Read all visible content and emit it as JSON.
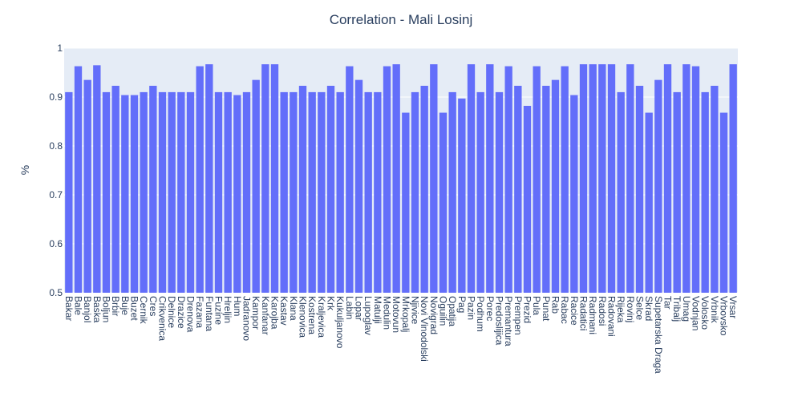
{
  "chart_data": {
    "type": "bar",
    "title": "Correlation - Mali Losinj",
    "xlabel": "",
    "ylabel": "%",
    "ylim": [
      0.5,
      1.0
    ],
    "yticks": [
      "0.5",
      "0.6",
      "0.7",
      "0.8",
      "0.9",
      "1"
    ],
    "grid": true,
    "bar_color": "#636efa",
    "plot_bg": "#e5ecf6",
    "text_color": "#2a3f5f",
    "categories": [
      "Bakar",
      "Bale",
      "Banjol",
      "Baska",
      "Boljun",
      "Brbir",
      "Buje",
      "Buzet",
      "Cernik",
      "Cres",
      "Crikvenica",
      "Delnice",
      "Drazice",
      "Drenova",
      "Fazana",
      "Funtana",
      "Fuzine",
      "Hreljin",
      "Hum",
      "Jadranovo",
      "Kampor",
      "Kanfanar",
      "Karojba",
      "Kastav",
      "Klana",
      "Klenovica",
      "Kostrena",
      "Kraljevica",
      "Krk",
      "Kukuljanovo",
      "Labin",
      "Lopar",
      "Lupoglav",
      "Matulji",
      "Medulin",
      "Motovun",
      "Mrkopalj",
      "Njivice",
      "Novi Vinodolski",
      "Novigrad",
      "Oguilin",
      "Opatija",
      "Pag",
      "Pazin",
      "Podhum",
      "Porec",
      "Predoslijica",
      "Premantura",
      "Prempen",
      "Prezid",
      "Pula",
      "Punat",
      "Rab",
      "Rabac",
      "Racice",
      "Radatici",
      "Radmani",
      "Radosi",
      "Radovani",
      "Rijeka",
      "Rovinj",
      "Selce",
      "Skrad",
      "Supetarska Draga",
      "Tar",
      "Tribalj",
      "Umag",
      "Vodnjan",
      "Volosko",
      "Vrbnik",
      "Vrbovsko",
      "Vrsar"
    ],
    "values": [
      0.91,
      0.963,
      0.935,
      0.965,
      0.91,
      0.923,
      0.904,
      0.904,
      0.91,
      0.923,
      0.91,
      0.91,
      0.91,
      0.91,
      0.963,
      0.967,
      0.91,
      0.91,
      0.904,
      0.91,
      0.935,
      0.967,
      0.967,
      0.91,
      0.91,
      0.923,
      0.91,
      0.91,
      0.923,
      0.91,
      0.963,
      0.935,
      0.91,
      0.91,
      0.963,
      0.967,
      0.868,
      0.91,
      0.923,
      0.967,
      0.868,
      0.91,
      0.897,
      0.967,
      0.91,
      0.967,
      0.91,
      0.963,
      0.923,
      0.882,
      0.963,
      0.923,
      0.935,
      0.963,
      0.904,
      0.967,
      0.967,
      0.967,
      0.967,
      0.91,
      0.967,
      0.923,
      0.868,
      0.935,
      0.967,
      0.91,
      0.967,
      0.963,
      0.91,
      0.923,
      0.868,
      0.967
    ]
  }
}
